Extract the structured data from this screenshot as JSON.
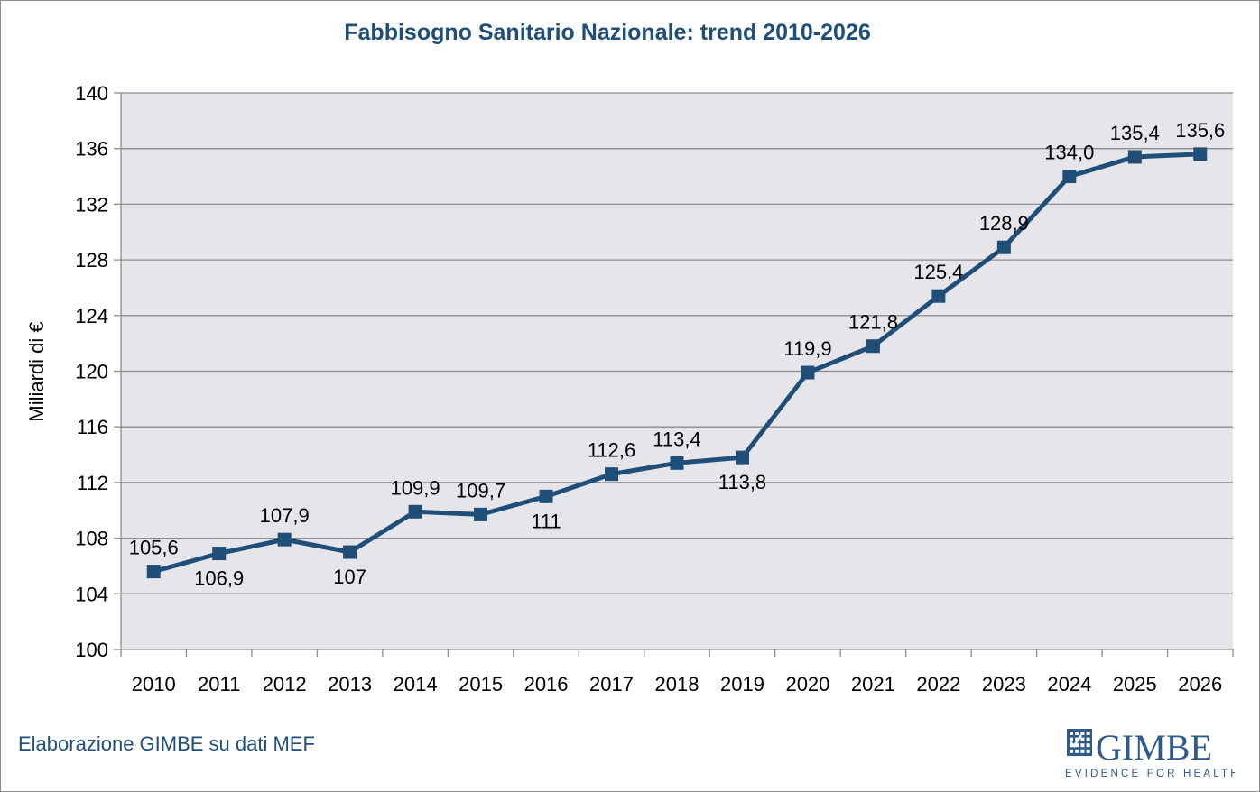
{
  "chart_data": {
    "type": "line",
    "title": "Fabbisogno Sanitario Nazionale: trend 2010-2026",
    "xlabel": "",
    "ylabel": "Miliardi di €",
    "categories": [
      "2010",
      "2011",
      "2012",
      "2013",
      "2014",
      "2015",
      "2016",
      "2017",
      "2018",
      "2019",
      "2020",
      "2021",
      "2022",
      "2023",
      "2024",
      "2025",
      "2026"
    ],
    "series": [
      {
        "name": "Fabbisogno Sanitario Nazionale",
        "values": [
          105.6,
          106.9,
          107.9,
          107.0,
          109.9,
          109.7,
          111.0,
          112.6,
          113.4,
          113.8,
          119.9,
          121.8,
          125.4,
          128.9,
          134.0,
          135.4,
          135.6
        ],
        "labels": [
          "105,6",
          "106,9",
          "107,9",
          "107",
          "109,9",
          "109,7",
          "111",
          "112,6",
          "113,4",
          "113,8",
          "119,9",
          "121,8",
          "125,4",
          "128,9",
          "134,0",
          "135,4",
          "135,6"
        ],
        "label_positions": [
          "above",
          "below",
          "above",
          "below",
          "above",
          "above",
          "below",
          "above",
          "above",
          "below",
          "above",
          "above",
          "above",
          "above",
          "above",
          "above",
          "above"
        ],
        "color": "#1f4e79"
      }
    ],
    "ylim": [
      100,
      140
    ],
    "yticks": [
      100,
      104,
      108,
      112,
      116,
      120,
      124,
      128,
      132,
      136,
      140
    ],
    "grid": true,
    "plot_background": "#e6e6ea",
    "gridline_color": "#8c8c8c"
  },
  "footer": {
    "source": "Elaborazione GIMBE su dati MEF"
  },
  "logo": {
    "name": "GIMBE",
    "tagline": "EVIDENCE FOR HEALTH",
    "color": "#2e5a8c"
  }
}
